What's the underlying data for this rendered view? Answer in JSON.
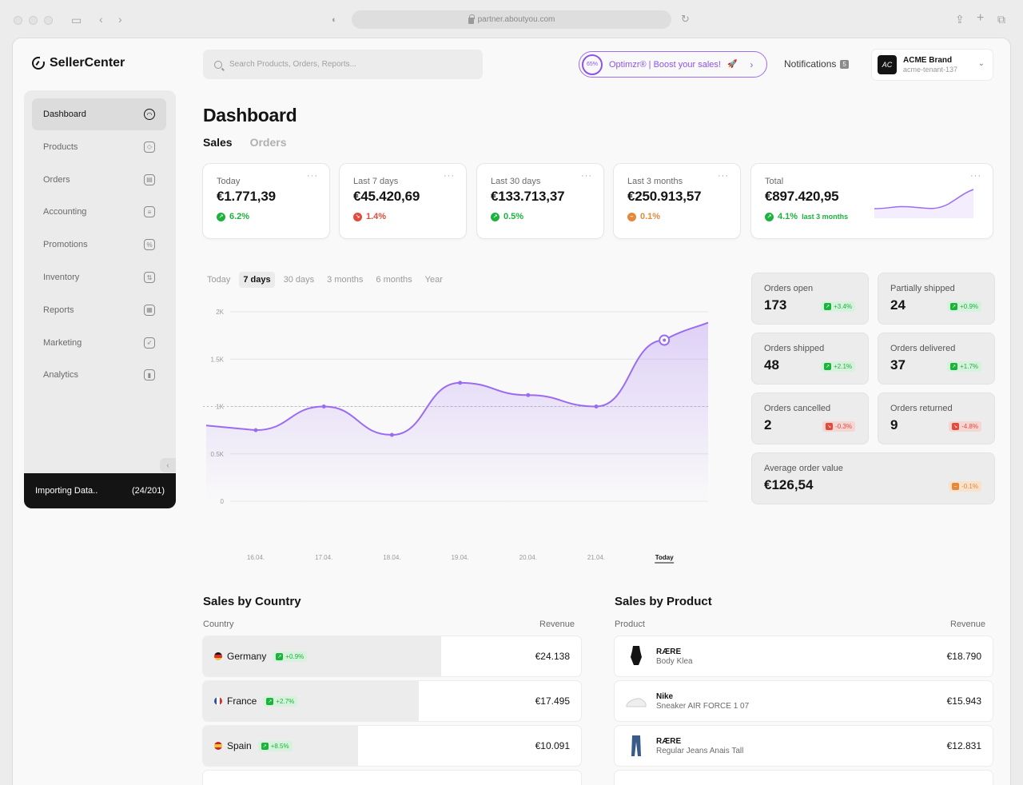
{
  "browser": {
    "url": "partner.aboutyou.com"
  },
  "app": {
    "logo": "SellerCenter"
  },
  "sidebar": {
    "items": [
      {
        "label": "Dashboard",
        "icon": "dashboard-icon",
        "glyph": "◠"
      },
      {
        "label": "Products",
        "icon": "tag-icon",
        "glyph": "◇"
      },
      {
        "label": "Orders",
        "icon": "clipboard-icon",
        "glyph": "▤"
      },
      {
        "label": "Accounting",
        "icon": "calculator-icon",
        "glyph": "≡"
      },
      {
        "label": "Promotions",
        "icon": "percent-icon",
        "glyph": "%"
      },
      {
        "label": "Inventory",
        "icon": "sort-icon",
        "glyph": "⇅"
      },
      {
        "label": "Reports",
        "icon": "report-icon",
        "glyph": "▦"
      },
      {
        "label": "Marketing",
        "icon": "rocket-icon",
        "glyph": "➶"
      },
      {
        "label": "Analytics",
        "icon": "bar-chart-icon",
        "glyph": "▮"
      }
    ],
    "importing_label": "Importing Data..",
    "importing_progress": "(24/201)"
  },
  "header": {
    "search_placeholder": "Search Products, Orders, Reports...",
    "optimzr_percent": "65%",
    "optimzr_label": "Optimzr® | Boost your sales!",
    "notifications_label": "Notifications",
    "notifications_count": "5",
    "account_avatar": "AC",
    "account_name": "ACME Brand",
    "account_tenant": "acme-tenant-137"
  },
  "main": {
    "title": "Dashboard",
    "tabs": [
      "Sales",
      "Orders"
    ]
  },
  "kpis": [
    {
      "label": "Today",
      "value": "€1.771,39",
      "change": "6.2%",
      "trend": "up"
    },
    {
      "label": "Last 7 days",
      "value": "€45.420,69",
      "change": "1.4%",
      "trend": "down"
    },
    {
      "label": "Last 30 days",
      "value": "€133.713,37",
      "change": "0.5%",
      "trend": "up"
    },
    {
      "label": "Last 3 months",
      "value": "€250.913,57",
      "change": "0.1%",
      "trend": "neutral"
    },
    {
      "label": "Total",
      "value": "€897.420,95",
      "change": "4.1%",
      "sub": "last 3 months",
      "trend": "up"
    }
  ],
  "range_tabs": [
    "Today",
    "7 days",
    "30 days",
    "3 months",
    "6 months",
    "Year"
  ],
  "range_selected": "7 days",
  "chart_data": {
    "type": "area",
    "x": [
      "16.04.",
      "17.04.",
      "18.04.",
      "19.04.",
      "20.04.",
      "21.04.",
      "Today"
    ],
    "values": [
      750,
      1000,
      700,
      1250,
      1120,
      1000,
      1700
    ],
    "y_ticks": [
      "0",
      "0.5K",
      "1K",
      "1.5K",
      "2K"
    ],
    "ylim": [
      0,
      2000
    ],
    "reference_line": 1000,
    "highlighted": "Today",
    "color": "#9b6cf0"
  },
  "order_stats": [
    {
      "label": "Orders open",
      "value": "173",
      "change": "+3.4%",
      "trend": "up"
    },
    {
      "label": "Partially shipped",
      "value": "24",
      "change": "+0.9%",
      "trend": "up"
    },
    {
      "label": "Orders shipped",
      "value": "48",
      "change": "+2.1%",
      "trend": "up"
    },
    {
      "label": "Orders delivered",
      "value": "37",
      "change": "+1.7%",
      "trend": "up"
    },
    {
      "label": "Orders cancelled",
      "value": "2",
      "change": "-0.3%",
      "trend": "down"
    },
    {
      "label": "Orders returned",
      "value": "9",
      "change": "-4.8%",
      "trend": "down"
    },
    {
      "label": "Average order value",
      "value": "€126,54",
      "change": "-0.1%",
      "trend": "neutral"
    }
  ],
  "sales_by_country": {
    "title": "Sales by Country",
    "col_left": "Country",
    "col_right": "Revenue",
    "rows": [
      {
        "name": "Germany",
        "change": "+0.9%",
        "revenue": "€24.138",
        "share": 0.63,
        "flag": [
          "#141414",
          "#dd2b2b",
          "#f2c230"
        ]
      },
      {
        "name": "France",
        "change": "+2.7%",
        "revenue": "€17.495",
        "share": 0.57,
        "flag": [
          "#2a4fb5",
          "#ffffff",
          "#dd2b2b"
        ]
      },
      {
        "name": "Spain",
        "change": "+8.5%",
        "revenue": "€10.091",
        "share": 0.41,
        "flag": [
          "#c8242b",
          "#f2c230",
          "#c8242b"
        ]
      }
    ]
  },
  "sales_by_product": {
    "title": "Sales by Product",
    "col_left": "Product",
    "col_right": "Revenue",
    "rows": [
      {
        "brand": "RÆRE",
        "name": "Body Klea",
        "revenue": "€18.790",
        "thumb": "bodysuit-icon"
      },
      {
        "brand": "Nike",
        "name": "Sneaker AIR FORCE 1 07",
        "revenue": "€15.943",
        "thumb": "sneaker-icon"
      },
      {
        "brand": "RÆRE",
        "name": "Regular Jeans Anais Tall",
        "revenue": "€12.831",
        "thumb": "jeans-icon"
      }
    ]
  }
}
